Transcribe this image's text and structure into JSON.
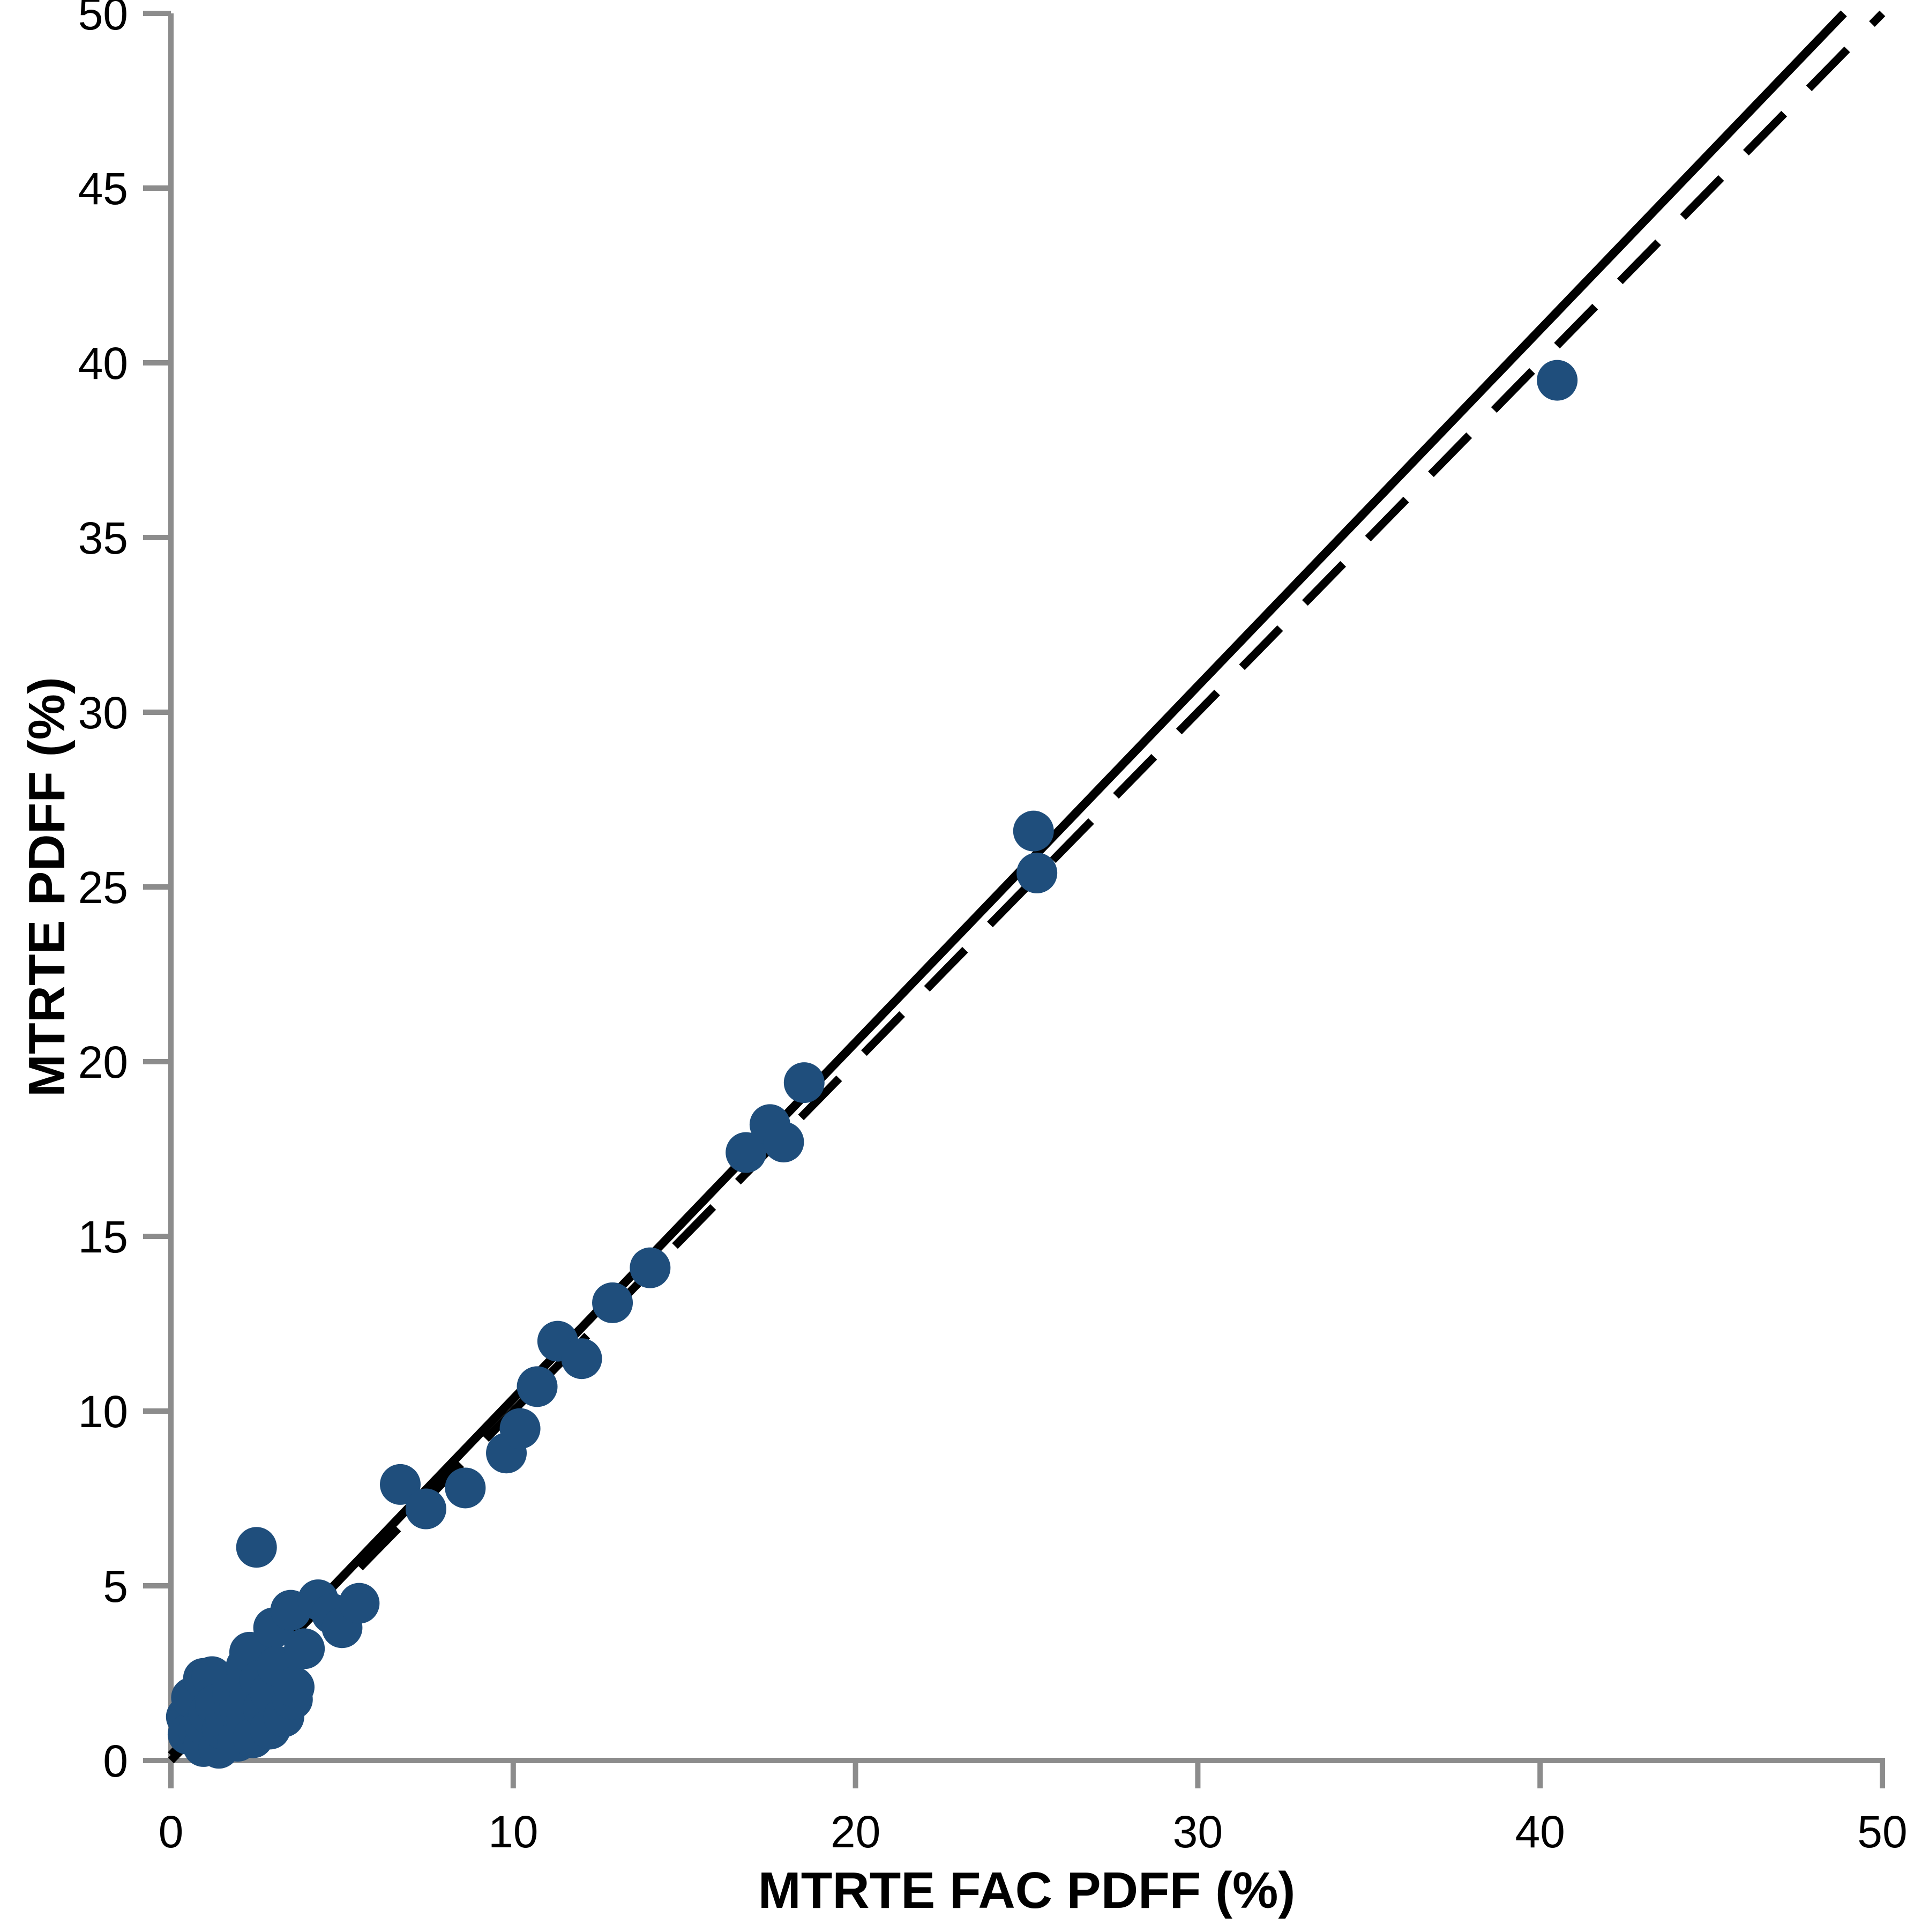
{
  "figure": {
    "background": "#ffffff"
  },
  "chart_data": {
    "type": "scatter",
    "title": "",
    "xlabel": "MTRTE FAC PDFF (%)",
    "ylabel": "MTRTE PDFF (%)",
    "xlim": [
      0,
      50
    ],
    "ylim": [
      0,
      50
    ],
    "x_ticks": [
      0,
      10,
      20,
      30,
      40,
      50
    ],
    "y_ticks": [
      0,
      5,
      10,
      15,
      20,
      25,
      30,
      35,
      40,
      45,
      50
    ],
    "grid": false,
    "legend": "none",
    "marker_color": "#1f4e7c",
    "axis_color": "#8c8c8c",
    "line_color": "#000000",
    "identity_line": {
      "style": "dashed",
      "x1": 0,
      "y1": 0,
      "x2": 50,
      "y2": 50
    },
    "regression_line": {
      "style": "solid",
      "slope": 1.02,
      "intercept": 0.15
    },
    "points": [
      [
        0.45,
        1.25
      ],
      [
        0.5,
        0.75
      ],
      [
        0.6,
        1.8
      ],
      [
        0.8,
        0.85
      ],
      [
        0.95,
        0.4
      ],
      [
        0.95,
        2.35
      ],
      [
        1.0,
        1.0
      ],
      [
        1.1,
        1.35
      ],
      [
        1.2,
        2.4
      ],
      [
        1.3,
        1.6
      ],
      [
        1.4,
        0.35
      ],
      [
        1.5,
        0.9
      ],
      [
        1.6,
        1.15
      ],
      [
        1.8,
        1.9
      ],
      [
        1.85,
        1.5
      ],
      [
        1.95,
        0.55
      ],
      [
        2.0,
        1.5
      ],
      [
        2.2,
        1.15
      ],
      [
        2.2,
        2.7
      ],
      [
        2.3,
        1.9
      ],
      [
        2.3,
        3.1
      ],
      [
        2.4,
        0.65
      ],
      [
        2.5,
        6.1
      ],
      [
        2.6,
        2.3
      ],
      [
        2.7,
        1.5
      ],
      [
        2.9,
        0.9
      ],
      [
        2.9,
        1.95
      ],
      [
        3.0,
        3.8
      ],
      [
        3.1,
        2.7
      ],
      [
        3.3,
        1.25
      ],
      [
        3.5,
        4.3
      ],
      [
        3.55,
        1.75
      ],
      [
        3.6,
        2.1
      ],
      [
        3.9,
        3.2
      ],
      [
        4.3,
        4.6
      ],
      [
        4.7,
        4.2
      ],
      [
        5.0,
        3.8
      ],
      [
        5.5,
        4.5
      ],
      [
        6.7,
        7.9
      ],
      [
        7.45,
        7.2
      ],
      [
        8.6,
        7.8
      ],
      [
        9.8,
        8.8
      ],
      [
        10.2,
        9.5
      ],
      [
        10.7,
        10.7
      ],
      [
        11.3,
        12.0
      ],
      [
        12.0,
        11.5
      ],
      [
        12.9,
        13.1
      ],
      [
        14.0,
        14.1
      ],
      [
        16.8,
        17.4
      ],
      [
        17.5,
        18.2
      ],
      [
        17.9,
        17.7
      ],
      [
        18.5,
        19.4
      ],
      [
        25.2,
        26.6
      ],
      [
        25.3,
        25.4
      ],
      [
        40.5,
        39.5
      ]
    ]
  }
}
